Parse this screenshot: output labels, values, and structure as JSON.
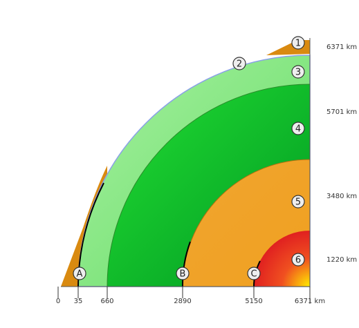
{
  "markers": [
    "1",
    "2",
    "3",
    "4",
    "5",
    "6"
  ],
  "points": [
    "A",
    "B",
    "C"
  ],
  "radius_labels": [
    "6371 km",
    "5701 km",
    "3480 km",
    "1220 km"
  ],
  "depth_labels": [
    "0",
    "35",
    "660",
    "2890",
    "5150",
    "6371 km"
  ]
}
